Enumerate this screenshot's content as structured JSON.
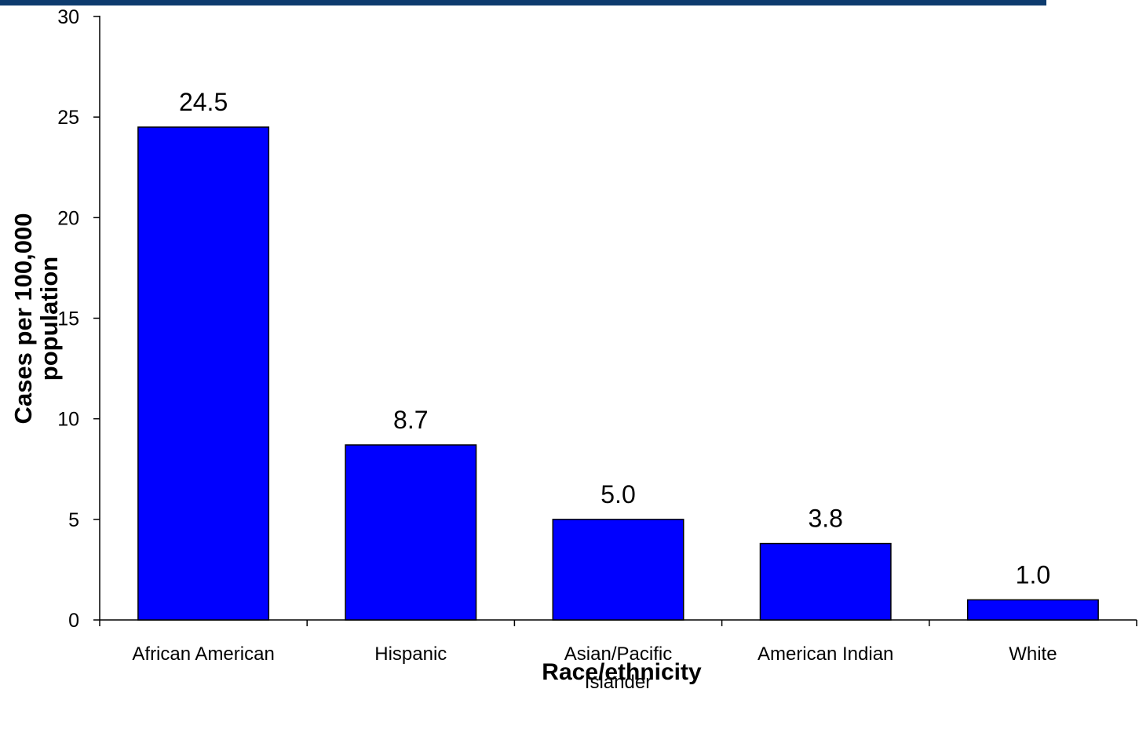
{
  "header": {
    "bar_color": "#0d3b6e"
  },
  "chart_data": {
    "type": "bar",
    "title": "",
    "xlabel": "Race/ethnicity",
    "ylabel_lines": [
      "Cases per 100,000",
      "population"
    ],
    "categories": [
      [
        "African American"
      ],
      [
        "Hispanic"
      ],
      [
        "Asian/Pacific",
        "Islander"
      ],
      [
        "American Indian"
      ],
      [
        "White"
      ]
    ],
    "values": [
      24.5,
      8.7,
      5.0,
      3.8,
      1.0
    ],
    "value_labels": [
      "24.5",
      "8.7",
      "5.0",
      "3.8",
      "1.0"
    ],
    "ylim": [
      0,
      30
    ],
    "yticks": [
      0,
      5,
      10,
      15,
      20,
      25,
      30
    ],
    "grid": false,
    "bar_color": "#0000ff",
    "bar_edge_color": "#000000"
  }
}
